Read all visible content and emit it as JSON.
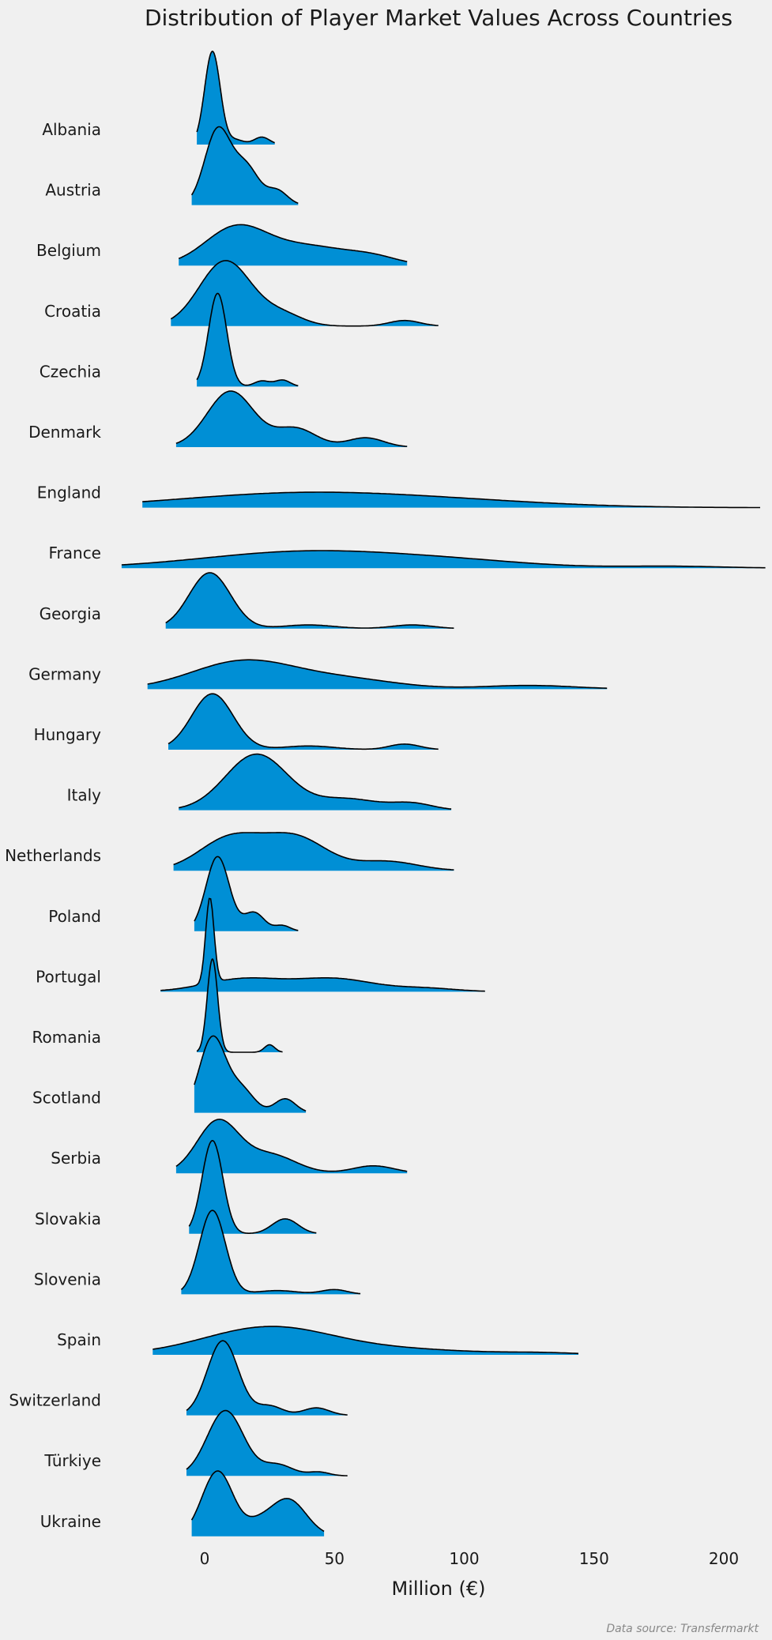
{
  "chart_data": {
    "type": "ridgeline",
    "title": "Distribution of Player Market Values Across Countries",
    "xlabel": "Million (€)",
    "source": "Data source: Transfermarkt",
    "xlim": [
      -32,
      216
    ],
    "xticks": [
      0,
      50,
      100,
      150,
      200
    ],
    "fill_color": "#008fd5",
    "line_color": "#000000",
    "background": "#f0f0f0",
    "series": [
      {
        "name": "Albania",
        "range": [
          -3,
          27
        ],
        "peaks": [
          [
            3,
            3,
            1.0
          ],
          [
            12,
            3,
            0.05
          ],
          [
            22,
            3,
            0.08
          ]
        ]
      },
      {
        "name": "Austria",
        "range": [
          -5,
          36
        ],
        "peaks": [
          [
            5,
            5,
            0.8
          ],
          [
            16,
            5,
            0.4
          ],
          [
            28,
            4,
            0.15
          ]
        ]
      },
      {
        "name": "Belgium",
        "range": [
          -10,
          78
        ],
        "peaks": [
          [
            12,
            12,
            0.4
          ],
          [
            40,
            15,
            0.2
          ],
          [
            65,
            10,
            0.08
          ]
        ]
      },
      {
        "name": "Croatia",
        "range": [
          -13,
          90
        ],
        "peaks": [
          [
            8,
            10,
            0.7
          ],
          [
            30,
            8,
            0.12
          ],
          [
            77,
            6,
            0.06
          ]
        ]
      },
      {
        "name": "Czechia",
        "range": [
          -3,
          36
        ],
        "peaks": [
          [
            5,
            3.5,
            1.0
          ],
          [
            22,
            3,
            0.06
          ],
          [
            30,
            3,
            0.07
          ]
        ]
      },
      {
        "name": "Denmark",
        "range": [
          -11,
          78
        ],
        "peaks": [
          [
            10,
            9,
            0.6
          ],
          [
            35,
            8,
            0.2
          ],
          [
            62,
            7,
            0.1
          ]
        ]
      },
      {
        "name": "England",
        "range": [
          -24,
          214
        ],
        "peaks": [
          [
            35,
            45,
            0.15
          ],
          [
            100,
            40,
            0.05
          ]
        ]
      },
      {
        "name": "France",
        "range": [
          -32,
          216
        ],
        "peaks": [
          [
            40,
            40,
            0.18
          ],
          [
            100,
            30,
            0.05
          ],
          [
            180,
            20,
            0.02
          ]
        ]
      },
      {
        "name": "Georgia",
        "range": [
          -15,
          96
        ],
        "peaks": [
          [
            2,
            8,
            0.6
          ],
          [
            40,
            10,
            0.04
          ],
          [
            80,
            8,
            0.04
          ]
        ]
      },
      {
        "name": "Germany",
        "range": [
          -22,
          155
        ],
        "peaks": [
          [
            15,
            20,
            0.3
          ],
          [
            55,
            20,
            0.1
          ],
          [
            125,
            18,
            0.04
          ]
        ]
      },
      {
        "name": "Hungary",
        "range": [
          -14,
          90
        ],
        "peaks": [
          [
            3,
            8,
            0.6
          ],
          [
            40,
            10,
            0.04
          ],
          [
            77,
            6,
            0.06
          ]
        ]
      },
      {
        "name": "Italy",
        "range": [
          -10,
          95
        ],
        "peaks": [
          [
            20,
            12,
            0.6
          ],
          [
            55,
            12,
            0.12
          ],
          [
            80,
            8,
            0.07
          ]
        ]
      },
      {
        "name": "Netherlands",
        "range": [
          -12,
          96
        ],
        "peaks": [
          [
            10,
            12,
            0.35
          ],
          [
            35,
            12,
            0.35
          ],
          [
            70,
            12,
            0.1
          ]
        ]
      },
      {
        "name": "Poland",
        "range": [
          -4,
          36
        ],
        "peaks": [
          [
            5,
            4.5,
            0.8
          ],
          [
            19,
            4,
            0.2
          ],
          [
            30,
            3,
            0.06
          ]
        ]
      },
      {
        "name": "Portugal",
        "range": [
          -17,
          108
        ],
        "peaks": [
          [
            2,
            1.6,
            1.0
          ],
          [
            15,
            15,
            0.15
          ],
          [
            50,
            15,
            0.15
          ],
          [
            85,
            12,
            0.04
          ]
        ]
      },
      {
        "name": "Romania",
        "range": [
          -3,
          30
        ],
        "peaks": [
          [
            3,
            2,
            1.0
          ],
          [
            25,
            2,
            0.08
          ]
        ]
      },
      {
        "name": "Scotland",
        "range": [
          -4,
          39
        ],
        "peaks": [
          [
            3,
            5,
            0.8
          ],
          [
            14,
            5,
            0.25
          ],
          [
            31,
            4,
            0.15
          ]
        ]
      },
      {
        "name": "Serbia",
        "range": [
          -11,
          78
        ],
        "peaks": [
          [
            5,
            8,
            0.55
          ],
          [
            25,
            10,
            0.2
          ],
          [
            65,
            8,
            0.08
          ]
        ]
      },
      {
        "name": "Slovakia",
        "range": [
          -6,
          43
        ],
        "peaks": [
          [
            3,
            4,
            1.0
          ],
          [
            31,
            5,
            0.16
          ]
        ]
      },
      {
        "name": "Slovenia",
        "range": [
          -9,
          60
        ],
        "peaks": [
          [
            3,
            5,
            0.9
          ],
          [
            28,
            8,
            0.04
          ],
          [
            50,
            5,
            0.05
          ]
        ]
      },
      {
        "name": "Spain",
        "range": [
          -20,
          144
        ],
        "peaks": [
          [
            25,
            25,
            0.3
          ],
          [
            80,
            25,
            0.05
          ],
          [
            130,
            15,
            0.02
          ]
        ]
      },
      {
        "name": "Switzerland",
        "range": [
          -7,
          55
        ],
        "peaks": [
          [
            7,
            6,
            0.8
          ],
          [
            25,
            5,
            0.1
          ],
          [
            43,
            5,
            0.08
          ]
        ]
      },
      {
        "name": "Türkiye",
        "range": [
          -7,
          55
        ],
        "peaks": [
          [
            8,
            7,
            0.7
          ],
          [
            28,
            6,
            0.12
          ],
          [
            44,
            4,
            0.04
          ]
        ]
      },
      {
        "name": "Ukraine",
        "range": [
          -5,
          46
        ],
        "peaks": [
          [
            5,
            6,
            0.7
          ],
          [
            32,
            7,
            0.4
          ],
          [
            20,
            5,
            0.1
          ]
        ]
      }
    ]
  }
}
